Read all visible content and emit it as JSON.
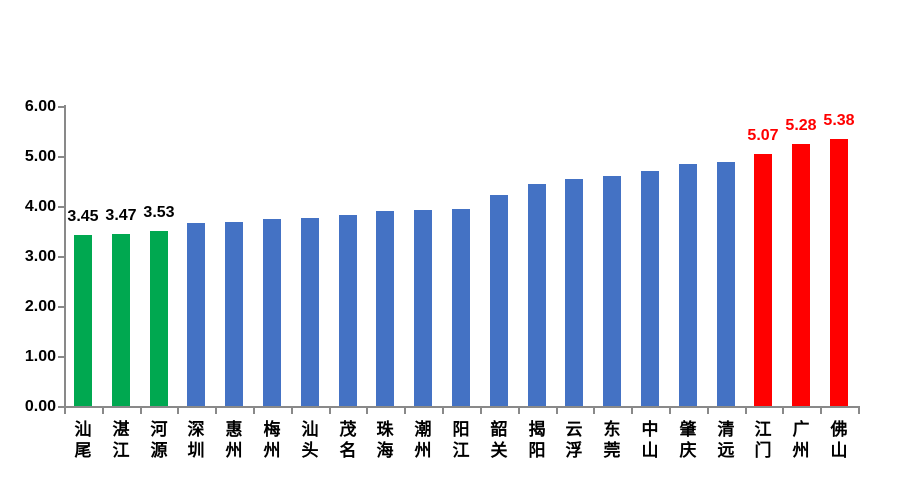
{
  "chart_data": {
    "type": "bar",
    "title": "",
    "xlabel": "",
    "ylabel": "",
    "ylim": [
      0,
      6
    ],
    "ytick_step": 1.0,
    "ytick_labels": [
      "0.00",
      "1.00",
      "2.00",
      "3.00",
      "4.00",
      "5.00",
      "6.00"
    ],
    "grid": false,
    "legend": "none",
    "categories": [
      "汕尾",
      "湛江",
      "河源",
      "深圳",
      "惠州",
      "梅州",
      "汕头",
      "茂名",
      "珠海",
      "潮州",
      "阳江",
      "韶关",
      "揭阳",
      "云浮",
      "东莞",
      "中山",
      "肇庆",
      "清远",
      "江门",
      "广州",
      "佛山"
    ],
    "points": [
      {
        "city": "汕尾",
        "value": 3.45,
        "group": "low",
        "data_label": "3.45"
      },
      {
        "city": "湛江",
        "value": 3.47,
        "group": "low",
        "data_label": "3.47"
      },
      {
        "city": "河源",
        "value": 3.53,
        "group": "low",
        "data_label": "3.53"
      },
      {
        "city": "深圳",
        "value": 3.7,
        "group": "mid",
        "data_label": null
      },
      {
        "city": "惠州",
        "value": 3.72,
        "group": "mid",
        "data_label": null
      },
      {
        "city": "梅州",
        "value": 3.77,
        "group": "mid",
        "data_label": null
      },
      {
        "city": "汕头",
        "value": 3.8,
        "group": "mid",
        "data_label": null
      },
      {
        "city": "茂名",
        "value": 3.86,
        "group": "mid",
        "data_label": null
      },
      {
        "city": "珠海",
        "value": 3.94,
        "group": "mid",
        "data_label": null
      },
      {
        "city": "潮州",
        "value": 3.96,
        "group": "mid",
        "data_label": null
      },
      {
        "city": "阳江",
        "value": 3.98,
        "group": "mid",
        "data_label": null
      },
      {
        "city": "韶关",
        "value": 4.26,
        "group": "mid",
        "data_label": null
      },
      {
        "city": "揭阳",
        "value": 4.48,
        "group": "mid",
        "data_label": null
      },
      {
        "city": "云浮",
        "value": 4.58,
        "group": "mid",
        "data_label": null
      },
      {
        "city": "东莞",
        "value": 4.64,
        "group": "mid",
        "data_label": null
      },
      {
        "city": "中山",
        "value": 4.74,
        "group": "mid",
        "data_label": null
      },
      {
        "city": "肇庆",
        "value": 4.88,
        "group": "mid",
        "data_label": null
      },
      {
        "city": "清远",
        "value": 4.92,
        "group": "mid",
        "data_label": null
      },
      {
        "city": "江门",
        "value": 5.07,
        "group": "high",
        "data_label": "5.07"
      },
      {
        "city": "广州",
        "value": 5.28,
        "group": "high",
        "data_label": "5.28"
      },
      {
        "city": "佛山",
        "value": 5.38,
        "group": "high",
        "data_label": "5.38"
      }
    ],
    "colors": {
      "low": "#00A850",
      "mid": "#4472C4",
      "high": "#FF0000",
      "axis": "#898989",
      "data_label_low": "#000000",
      "data_label_high": "#FF0000",
      "tick_label": "#000000",
      "background": "#FFFFFF"
    }
  }
}
